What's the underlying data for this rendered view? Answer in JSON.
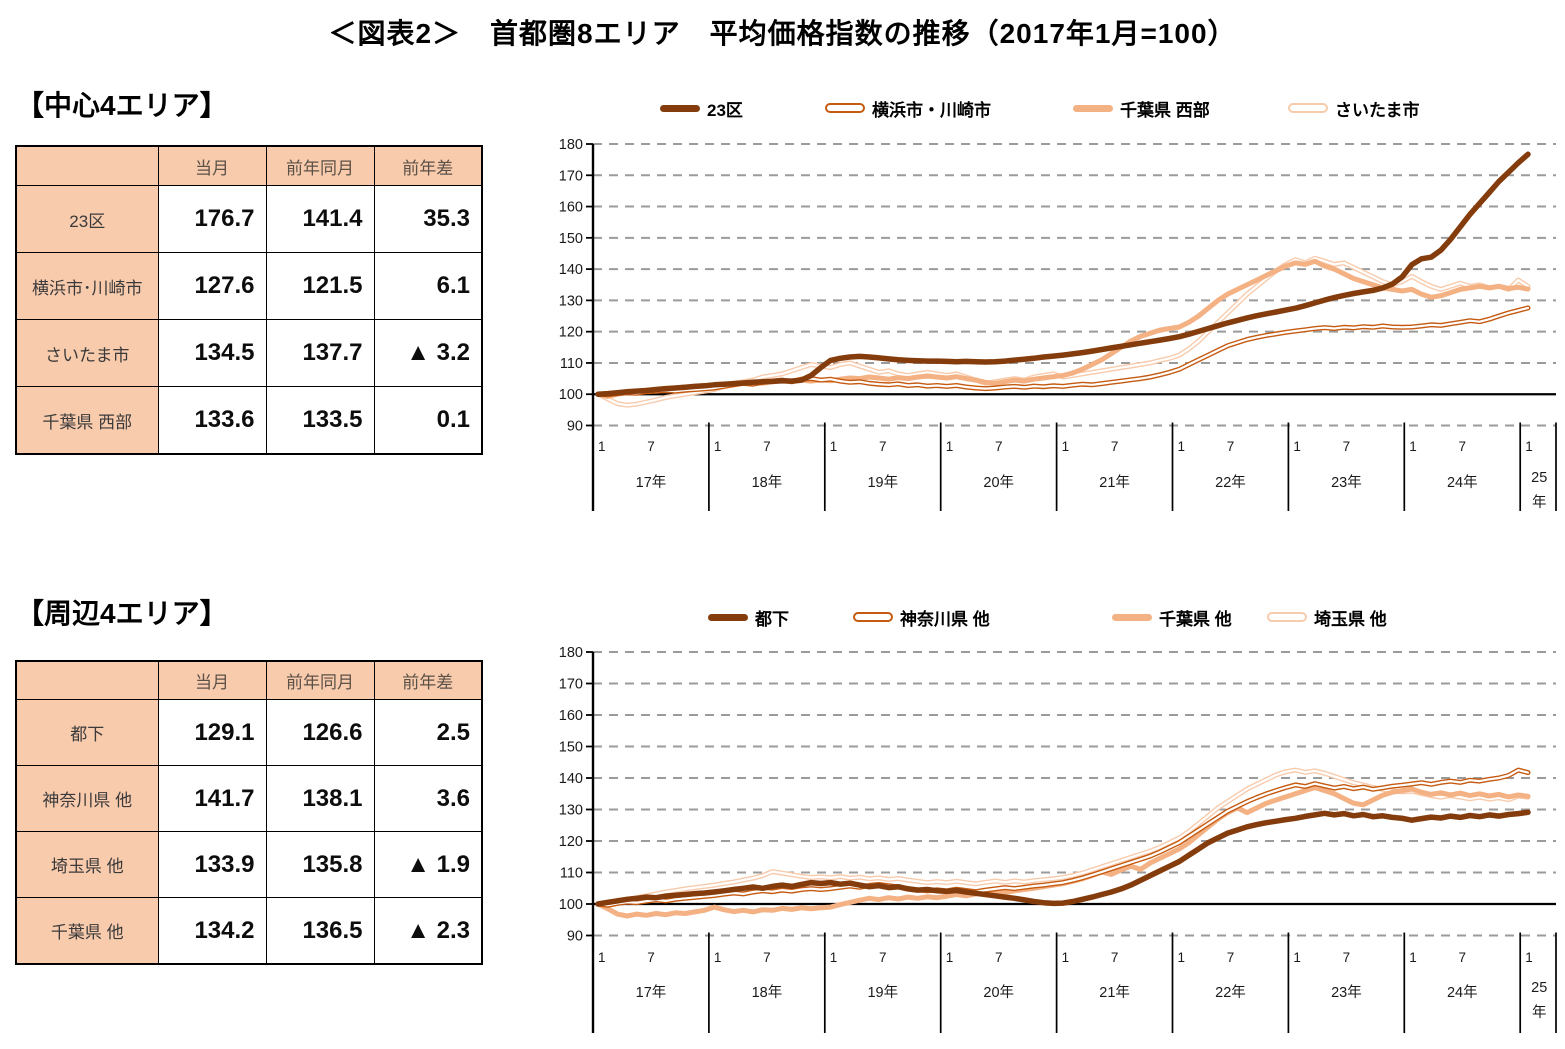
{
  "title": "＜図表2＞　首都圏8エリア　平均価格指数の推移（2017年1月=100）",
  "colors": {
    "dark_brown": "#843C0C",
    "orange": "#C55A11",
    "light_peach": "#F8CBAD",
    "peach": "#F4B183",
    "table_fill": "#F8CBAD",
    "grid": "#9b9b9b",
    "baseline": "#000000"
  },
  "axis": {
    "y_ticks": [
      180,
      170,
      160,
      150,
      140,
      130,
      120,
      110,
      100,
      90
    ],
    "baseline_value": 100,
    "month_tick_labels": [
      "1",
      "7"
    ],
    "year_labels": [
      "17年",
      "18年",
      "19年",
      "20年",
      "21年",
      "22年",
      "23年",
      "24年",
      "25年"
    ],
    "last_year_wrapped": [
      "25",
      "年"
    ]
  },
  "sections": {
    "central": {
      "heading": "【中心4エリア】",
      "table": {
        "col_headers": [
          "",
          "当月",
          "前年同月",
          "前年差"
        ],
        "rows": [
          {
            "label": "23区",
            "current": "176.7",
            "prev": "141.4",
            "diff": "35.3"
          },
          {
            "label": "横浜市･川崎市",
            "current": "127.6",
            "prev": "121.5",
            "diff": "6.1"
          },
          {
            "label": "さいたま市",
            "current": "134.5",
            "prev": "137.7",
            "diff": "▲ 3.2"
          },
          {
            "label": "千葉県 西部",
            "current": "133.6",
            "prev": "133.5",
            "diff": "0.1"
          }
        ]
      },
      "chart_index": 0
    },
    "peripheral": {
      "heading": "【周辺4エリア】",
      "table": {
        "col_headers": [
          "",
          "当月",
          "前年同月",
          "前年差"
        ],
        "rows": [
          {
            "label": "都下",
            "current": "129.1",
            "prev": "126.6",
            "diff": "2.5"
          },
          {
            "label": "神奈川県 他",
            "current": "141.7",
            "prev": "138.1",
            "diff": "3.6"
          },
          {
            "label": "埼玉県 他",
            "current": "133.9",
            "prev": "135.8",
            "diff": "▲ 1.9"
          },
          {
            "label": "千葉県 他",
            "current": "134.2",
            "prev": "136.5",
            "diff": "▲ 2.3"
          }
        ]
      },
      "chart_index": 1
    }
  },
  "chart_data": [
    {
      "type": "line",
      "title": "中心4エリア 平均価格指数の推移",
      "x_start": "2017-01",
      "x_interval": "monthly",
      "x_points": 97,
      "ylim": [
        90,
        180
      ],
      "grid": "dashed-horizontal",
      "legend_position": "top",
      "series": [
        {
          "name": "さいたま市",
          "color": "#F8CBAD",
          "style": "outline",
          "values": [
            100.0,
            98.5,
            97.0,
            96.5,
            96.8,
            97.5,
            98.2,
            99.0,
            99.5,
            100.0,
            100.5,
            101.0,
            101.5,
            102.5,
            103.5,
            104.0,
            104.5,
            105.5,
            106.0,
            106.5,
            107.5,
            108.5,
            109.5,
            109.0,
            108.5,
            109.5,
            110.0,
            109.0,
            108.0,
            107.0,
            107.5,
            106.5,
            106.0,
            106.5,
            107.0,
            106.5,
            106.0,
            106.5,
            105.5,
            104.5,
            103.5,
            104.0,
            104.5,
            105.0,
            104.5,
            105.5,
            106.0,
            106.5,
            105.5,
            106.0,
            106.5,
            107.0,
            107.5,
            108.0,
            108.5,
            109.0,
            109.5,
            110.0,
            110.8,
            111.5,
            112.5,
            114.5,
            117.0,
            120.0,
            123.0,
            126.0,
            129.0,
            132.0,
            134.5,
            137.0,
            139.5,
            141.5,
            143.0,
            142.0,
            143.5,
            142.5,
            141.5,
            142.0,
            140.5,
            139.0,
            137.5,
            136.0,
            135.0,
            136.0,
            137.7,
            136.0,
            134.5,
            133.5,
            134.5,
            135.5,
            134.5,
            135.0,
            134.0,
            134.5,
            133.5,
            136.5,
            134.5
          ]
        },
        {
          "name": "千葉県 西部",
          "color": "#F4B183",
          "style": "solid",
          "values": [
            100.0,
            99.3,
            100.0,
            100.5,
            101.0,
            101.3,
            101.0,
            101.5,
            102.0,
            102.3,
            102.0,
            102.5,
            102.8,
            103.2,
            103.0,
            103.5,
            103.8,
            103.5,
            104.0,
            104.3,
            104.0,
            104.5,
            104.2,
            104.6,
            104.3,
            104.8,
            105.2,
            105.0,
            105.5,
            105.2,
            104.8,
            105.3,
            105.0,
            105.5,
            105.8,
            105.5,
            105.2,
            105.6,
            105.0,
            104.5,
            103.8,
            103.5,
            104.0,
            104.5,
            104.2,
            104.8,
            105.2,
            105.6,
            106.0,
            106.8,
            108.0,
            109.5,
            111.0,
            113.0,
            115.0,
            117.0,
            118.5,
            119.5,
            120.5,
            121.0,
            121.5,
            123.0,
            125.0,
            127.5,
            130.0,
            132.0,
            133.5,
            135.0,
            136.5,
            138.0,
            139.5,
            141.0,
            142.0,
            141.5,
            142.5,
            141.0,
            140.0,
            138.5,
            137.0,
            136.0,
            135.0,
            134.0,
            133.5,
            133.0,
            133.5,
            132.0,
            131.0,
            131.5,
            132.5,
            133.5,
            134.0,
            134.5,
            134.0,
            134.5,
            133.8,
            134.2,
            133.6
          ]
        },
        {
          "name": "横浜市・川崎市",
          "color": "#C55A11",
          "style": "outline",
          "values": [
            100.0,
            99.8,
            100.2,
            100.5,
            100.3,
            100.8,
            101.0,
            101.2,
            101.0,
            101.3,
            101.5,
            101.7,
            102.0,
            102.5,
            103.0,
            103.5,
            103.2,
            103.8,
            104.2,
            104.5,
            104.0,
            104.8,
            105.0,
            104.5,
            104.8,
            104.2,
            103.8,
            104.0,
            103.5,
            103.2,
            103.0,
            103.3,
            102.8,
            103.0,
            102.6,
            102.8,
            102.5,
            102.8,
            102.3,
            102.0,
            101.8,
            102.0,
            102.3,
            102.5,
            102.2,
            102.6,
            102.4,
            102.7,
            102.5,
            102.9,
            103.2,
            103.0,
            103.4,
            103.8,
            104.2,
            104.6,
            105.0,
            105.5,
            106.2,
            107.0,
            108.0,
            109.5,
            111.0,
            112.5,
            114.0,
            115.5,
            116.5,
            117.5,
            118.2,
            118.8,
            119.3,
            119.8,
            120.2,
            120.6,
            121.0,
            121.3,
            121.0,
            121.4,
            121.2,
            121.6,
            121.4,
            121.8,
            121.5,
            121.4,
            121.5,
            121.8,
            122.2,
            122.0,
            122.5,
            123.0,
            123.5,
            123.2,
            124.0,
            125.0,
            126.0,
            126.8,
            127.6
          ]
        },
        {
          "name": "23区",
          "color": "#843C0C",
          "style": "solid",
          "values": [
            100.0,
            100.2,
            100.5,
            100.8,
            101.0,
            101.2,
            101.5,
            101.8,
            102.0,
            102.2,
            102.5,
            102.7,
            103.0,
            103.2,
            103.4,
            103.6,
            103.8,
            104.0,
            104.1,
            104.3,
            104.2,
            104.5,
            106.0,
            108.5,
            110.8,
            111.5,
            111.9,
            112.1,
            111.9,
            111.6,
            111.3,
            111.0,
            110.8,
            110.7,
            110.6,
            110.6,
            110.5,
            110.4,
            110.5,
            110.4,
            110.3,
            110.4,
            110.6,
            110.9,
            111.2,
            111.5,
            111.9,
            112.2,
            112.5,
            112.9,
            113.3,
            113.8,
            114.3,
            114.8,
            115.3,
            115.8,
            116.3,
            116.8,
            117.3,
            117.8,
            118.4,
            119.2,
            120.1,
            121.0,
            121.9,
            122.8,
            123.6,
            124.4,
            125.1,
            125.7,
            126.3,
            126.9,
            127.5,
            128.3,
            129.2,
            130.1,
            130.9,
            131.6,
            132.2,
            132.7,
            133.2,
            134.0,
            135.2,
            137.5,
            141.4,
            143.3,
            143.8,
            146.0,
            149.5,
            153.5,
            157.5,
            161.0,
            164.5,
            168.0,
            171.0,
            174.0,
            176.7
          ]
        }
      ]
    },
    {
      "type": "line",
      "title": "周辺4エリア 平均価格指数の推移",
      "x_start": "2017-01",
      "x_interval": "monthly",
      "x_points": 97,
      "ylim": [
        90,
        180
      ],
      "grid": "dashed-horizontal",
      "legend_position": "top",
      "series": [
        {
          "name": "埼玉県 他",
          "color": "#F8CBAD",
          "style": "outline",
          "values": [
            100.0,
            100.4,
            100.9,
            101.4,
            102.0,
            102.6,
            103.2,
            103.8,
            104.3,
            104.8,
            105.2,
            105.6,
            106.0,
            106.5,
            107.0,
            107.6,
            108.2,
            109.0,
            110.3,
            109.8,
            109.3,
            108.8,
            108.4,
            108.6,
            108.3,
            108.7,
            108.2,
            108.5,
            108.0,
            108.3,
            107.8,
            108.1,
            107.6,
            107.2,
            106.8,
            107.1,
            106.8,
            107.2,
            106.8,
            106.4,
            106.9,
            107.3,
            106.9,
            107.3,
            107.0,
            107.4,
            107.7,
            108.0,
            108.4,
            109.0,
            109.8,
            110.8,
            111.8,
            112.8,
            113.8,
            114.8,
            115.8,
            116.8,
            118.0,
            119.5,
            121.0,
            123.0,
            125.5,
            128.0,
            130.5,
            132.5,
            134.5,
            136.5,
            138.0,
            139.5,
            141.0,
            142.0,
            142.5,
            141.8,
            142.3,
            141.5,
            140.5,
            139.5,
            138.5,
            137.8,
            137.0,
            136.4,
            135.9,
            135.6,
            135.8,
            135.1,
            134.4,
            133.9,
            134.4,
            133.9,
            133.4,
            133.9,
            133.3,
            133.7,
            133.1,
            134.3,
            133.9
          ]
        },
        {
          "name": "千葉県 他",
          "color": "#F4B183",
          "style": "solid",
          "values": [
            100.0,
            98.5,
            96.8,
            96.2,
            96.8,
            96.4,
            97.0,
            96.6,
            97.2,
            97.0,
            97.5,
            98.0,
            99.0,
            98.2,
            97.6,
            98.0,
            97.5,
            98.2,
            98.0,
            98.6,
            98.3,
            98.8,
            98.5,
            98.8,
            99.0,
            99.8,
            100.5,
            101.2,
            101.8,
            101.4,
            102.0,
            101.6,
            102.2,
            101.8,
            102.3,
            102.0,
            102.5,
            103.0,
            102.6,
            103.2,
            103.6,
            104.0,
            103.6,
            104.2,
            104.6,
            105.0,
            105.5,
            106.0,
            106.5,
            107.2,
            108.0,
            109.0,
            110.2,
            109.4,
            110.8,
            112.0,
            111.0,
            113.0,
            114.5,
            116.0,
            117.5,
            119.5,
            122.0,
            124.5,
            127.0,
            129.0,
            130.5,
            129.0,
            130.5,
            132.0,
            133.0,
            134.0,
            135.0,
            136.0,
            137.0,
            136.0,
            135.0,
            133.5,
            132.0,
            131.5,
            133.0,
            134.5,
            135.5,
            136.0,
            136.5,
            135.5,
            134.8,
            135.3,
            134.6,
            135.2,
            134.4,
            135.0,
            134.3,
            134.8,
            134.0,
            134.6,
            134.2
          ]
        },
        {
          "name": "神奈川県 他",
          "color": "#C55A11",
          "style": "outline",
          "values": [
            100.0,
            99.6,
            100.2,
            100.6,
            100.4,
            100.9,
            101.3,
            101.0,
            101.5,
            101.8,
            102.1,
            102.4,
            102.7,
            103.1,
            103.5,
            103.2,
            103.8,
            104.2,
            103.9,
            104.4,
            104.1,
            104.6,
            104.9,
            104.6,
            104.9,
            105.3,
            105.7,
            105.3,
            105.9,
            106.2,
            105.8,
            105.4,
            104.9,
            104.5,
            104.2,
            104.5,
            104.2,
            104.7,
            104.3,
            103.9,
            104.4,
            104.8,
            105.2,
            104.9,
            105.3,
            105.7,
            106.0,
            106.4,
            106.8,
            107.5,
            108.3,
            109.2,
            110.2,
            111.2,
            112.2,
            113.2,
            114.2,
            115.2,
            116.5,
            118.0,
            119.5,
            121.5,
            123.5,
            125.5,
            127.5,
            129.5,
            131.0,
            132.5,
            133.8,
            135.0,
            136.0,
            137.0,
            137.8,
            137.3,
            138.2,
            137.5,
            136.8,
            137.3,
            136.6,
            137.1,
            136.4,
            136.9,
            137.4,
            137.7,
            138.1,
            138.5,
            138.0,
            138.6,
            139.0,
            138.6,
            139.3,
            139.0,
            139.6,
            140.0,
            140.8,
            142.5,
            141.7
          ]
        },
        {
          "name": "都下",
          "color": "#843C0C",
          "style": "solid",
          "values": [
            100.0,
            100.5,
            101.0,
            101.5,
            101.8,
            102.2,
            102.0,
            102.5,
            102.8,
            103.0,
            103.3,
            103.5,
            103.8,
            104.2,
            104.6,
            105.0,
            105.4,
            105.0,
            105.6,
            106.0,
            105.6,
            106.2,
            106.8,
            106.5,
            106.8,
            106.3,
            106.6,
            106.0,
            105.5,
            105.8,
            105.2,
            105.5,
            104.8,
            104.4,
            104.6,
            104.2,
            104.0,
            104.3,
            103.8,
            103.4,
            103.0,
            102.6,
            102.2,
            101.8,
            101.3,
            100.8,
            100.4,
            100.2,
            100.3,
            100.8,
            101.5,
            102.2,
            103.0,
            103.8,
            104.8,
            106.0,
            107.5,
            109.0,
            110.5,
            112.0,
            113.5,
            115.5,
            117.5,
            119.5,
            121.0,
            122.5,
            123.5,
            124.5,
            125.2,
            125.8,
            126.3,
            126.8,
            127.2,
            127.8,
            128.3,
            128.8,
            128.3,
            128.7,
            128.0,
            128.4,
            127.7,
            128.0,
            127.5,
            127.2,
            126.6,
            127.1,
            127.6,
            127.3,
            127.9,
            127.5,
            128.1,
            127.7,
            128.3,
            127.9,
            128.4,
            128.7,
            129.1
          ]
        }
      ]
    }
  ]
}
